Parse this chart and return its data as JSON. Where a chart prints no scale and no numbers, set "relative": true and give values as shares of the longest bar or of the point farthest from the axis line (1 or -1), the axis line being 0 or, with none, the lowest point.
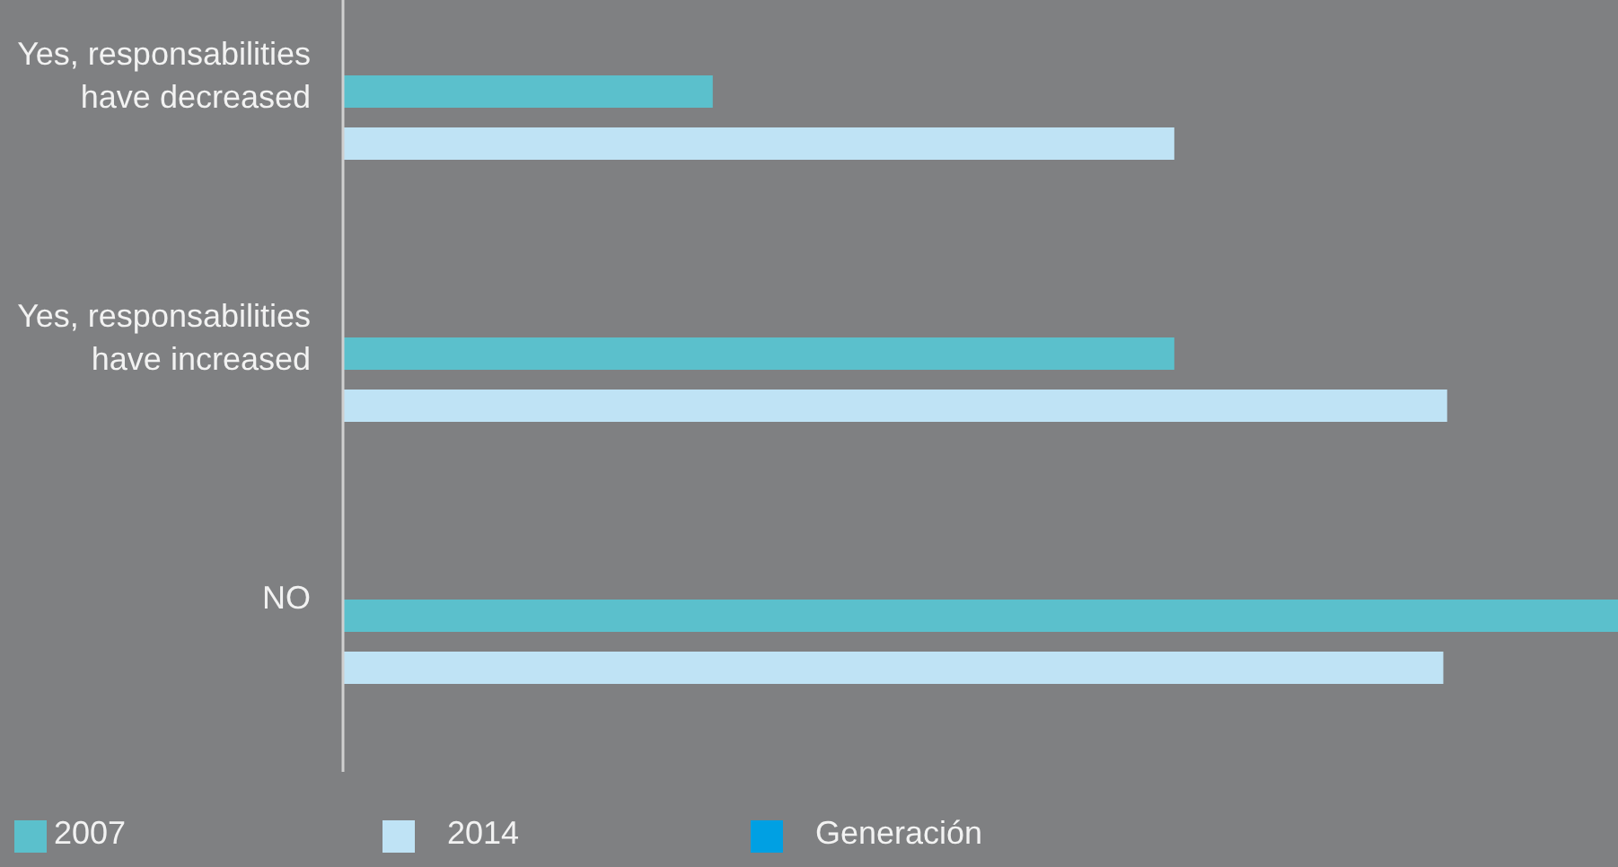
{
  "chart_data": {
    "type": "bar",
    "orientation": "horizontal",
    "relative": true,
    "categories": [
      "Yes, responsabilities have decreased",
      "Yes, responsabilities have increased",
      "NO"
    ],
    "series": [
      {
        "name": "2007",
        "color": "#5bc0cc",
        "values": [
          0.29,
          0.652,
          1
        ]
      },
      {
        "name": "2014",
        "color": "#bfe3f5",
        "values": [
          0.652,
          0.866,
          0.863
        ]
      },
      {
        "name": "Generación",
        "color": "#00a0e3",
        "values": [
          null,
          null,
          null
        ]
      }
    ],
    "legend": "bottom",
    "grid": false
  }
}
